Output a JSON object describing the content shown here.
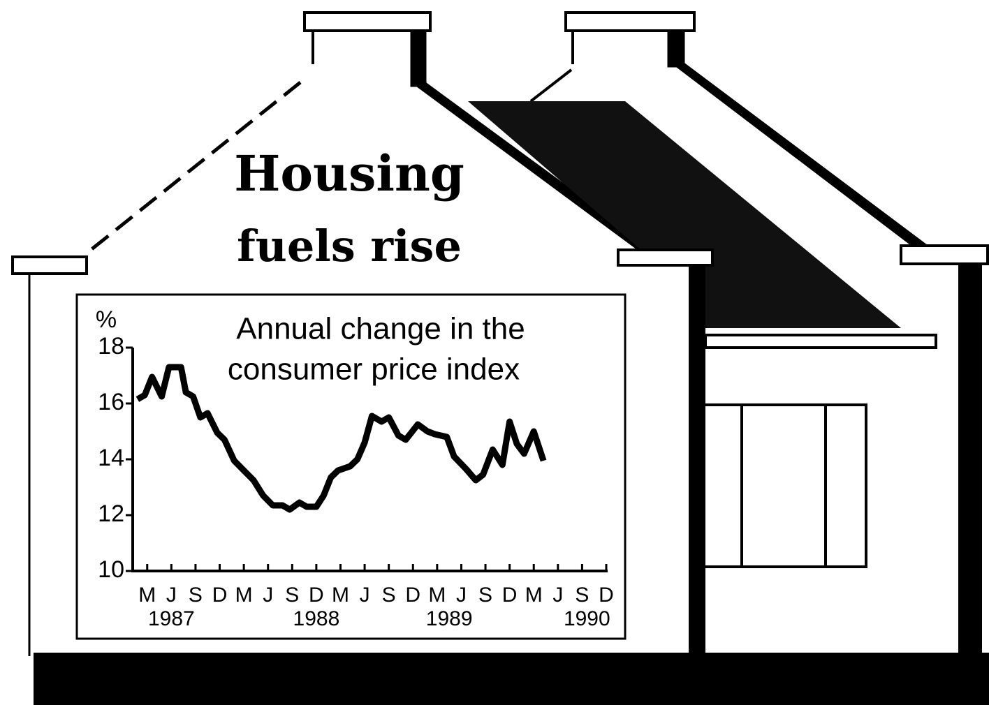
{
  "headline": [
    "Housing",
    "fuels rise"
  ],
  "chart_data": {
    "type": "line",
    "title": [
      "Annual change in the",
      "consumer price index"
    ],
    "y_label": "%",
    "ylim": [
      10,
      18
    ],
    "yticks": [
      10,
      12,
      14,
      16,
      18
    ],
    "xlim": [
      -0.6,
      19
    ],
    "xticks": [
      {
        "value": 0,
        "label": "M"
      },
      {
        "value": 1,
        "label": "J"
      },
      {
        "value": 2,
        "label": "S"
      },
      {
        "value": 3,
        "label": "D"
      },
      {
        "value": 4,
        "label": "M"
      },
      {
        "value": 5,
        "label": "J"
      },
      {
        "value": 6,
        "label": "S"
      },
      {
        "value": 7,
        "label": "D"
      },
      {
        "value": 8,
        "label": "M"
      },
      {
        "value": 9,
        "label": "J"
      },
      {
        "value": 10,
        "label": "S"
      },
      {
        "value": 11,
        "label": "D"
      },
      {
        "value": 12,
        "label": "M"
      },
      {
        "value": 13,
        "label": "J"
      },
      {
        "value": 14,
        "label": "S"
      },
      {
        "value": 15,
        "label": "D"
      },
      {
        "value": 16,
        "label": "M"
      },
      {
        "value": 17,
        "label": "J"
      },
      {
        "value": 18,
        "label": "S"
      },
      {
        "value": 19,
        "label": "D"
      }
    ],
    "year_labels": [
      {
        "value": 1,
        "label": "1987"
      },
      {
        "value": 7,
        "label": "1988"
      },
      {
        "value": 12.5,
        "label": "1989"
      },
      {
        "value": 18.2,
        "label": "1990"
      }
    ],
    "color": "#000000",
    "x": [
      -0.4,
      -0.1,
      0.2,
      0.6,
      0.9,
      1.4,
      1.6,
      1.9,
      2.2,
      2.5,
      2.9,
      3.2,
      3.6,
      4.0,
      4.4,
      4.8,
      5.2,
      5.6,
      5.9,
      6.3,
      6.6,
      7.0,
      7.3,
      7.6,
      7.9,
      8.4,
      8.7,
      9.0,
      9.3,
      9.7,
      10.0,
      10.4,
      10.7,
      11.2,
      11.6,
      11.9,
      12.4,
      12.7,
      13.2,
      13.6,
      13.9,
      14.3,
      14.7,
      15.0,
      15.3,
      15.6,
      16.0,
      16.4
    ],
    "values": [
      16.15,
      16.3,
      16.95,
      16.25,
      17.3,
      17.3,
      16.4,
      16.25,
      15.5,
      15.65,
      14.95,
      14.7,
      13.95,
      13.6,
      13.25,
      12.7,
      12.35,
      12.35,
      12.2,
      12.45,
      12.3,
      12.3,
      12.7,
      13.35,
      13.6,
      13.75,
      14.0,
      14.6,
      15.55,
      15.35,
      15.5,
      14.85,
      14.7,
      15.25,
      15.0,
      14.9,
      14.8,
      14.1,
      13.65,
      13.25,
      13.45,
      14.35,
      13.8,
      15.35,
      14.55,
      14.2,
      15.0,
      13.95
    ]
  }
}
